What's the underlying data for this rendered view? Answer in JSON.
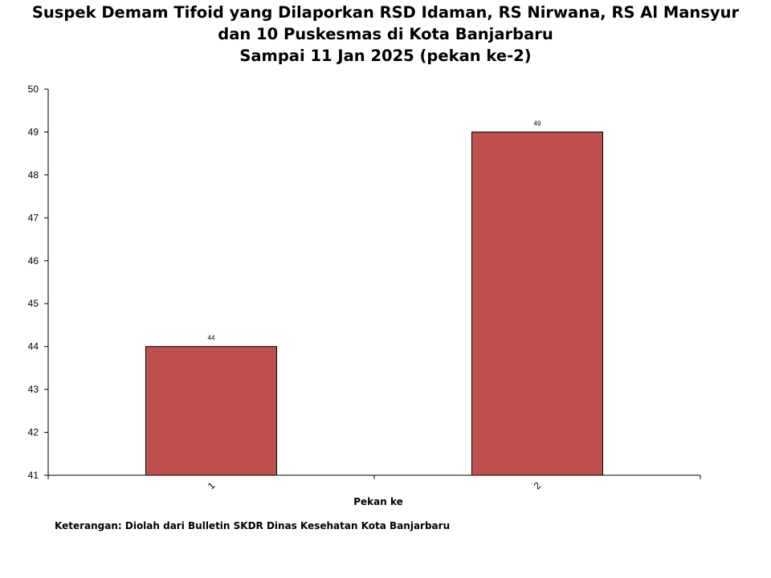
{
  "chart_data": {
    "type": "bar",
    "title_lines": [
      "Suspek Demam Tifoid yang Dilaporkan RSD Idaman, RS Nirwana, RS Al Mansyur",
      "dan 10 Puskesmas di Kota Banjarbaru",
      "Sampai 11 Jan 2025 (pekan ke-2)"
    ],
    "categories": [
      "1",
      "2"
    ],
    "values": [
      44,
      49
    ],
    "data_labels": [
      "44",
      "49"
    ],
    "xlabel": "Pekan ke",
    "ylabel": "",
    "ylim": [
      41,
      50
    ],
    "yticks": [
      "41",
      "42",
      "43",
      "44",
      "45",
      "46",
      "47",
      "48",
      "49",
      "50"
    ],
    "bar_color": "#c0504d",
    "grid": false,
    "legend": "none"
  },
  "footnote": "Keterangan: Diolah dari Bulletin SKDR Dinas Kesehatan Kota Banjarbaru"
}
